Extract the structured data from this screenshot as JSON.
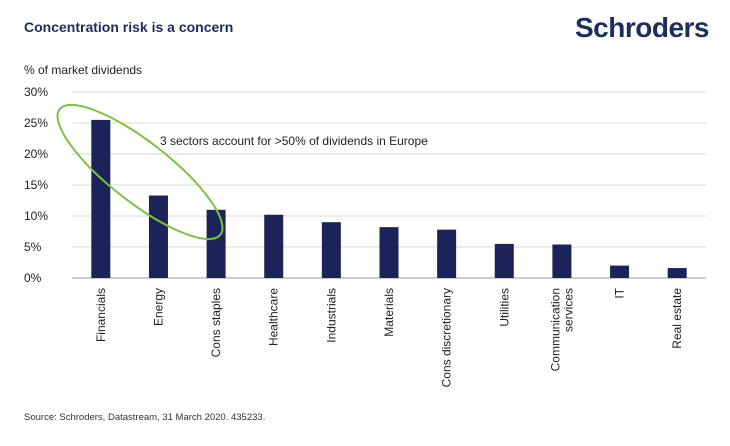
{
  "title": "Concentration risk is a concern",
  "logo_text": "Schroders",
  "source": "Source: Schroders, Datastream, 31 March 2020. 435233.",
  "colors": {
    "bar": "#1c2359",
    "title": "#1f2a5c",
    "ellipse": "#7cc242",
    "grid": "#d9d9d9"
  },
  "chart_data": {
    "type": "bar",
    "ylabel": "% of market dividends",
    "categories": [
      "Financials",
      "Energy",
      "Cons staples",
      "Healthcare",
      "Industrials",
      "Materials",
      "Cons discretionary",
      "Utilities",
      "Communication|services",
      "IT",
      "Real estate"
    ],
    "values": [
      25.5,
      13.3,
      11.0,
      10.2,
      9.0,
      8.2,
      7.8,
      5.5,
      5.4,
      2.0,
      1.6
    ],
    "ylim": [
      0,
      30
    ],
    "yticks": [
      0,
      5,
      10,
      15,
      20,
      25,
      30
    ],
    "ytick_labels": [
      "0%",
      "5%",
      "10%",
      "15%",
      "20%",
      "25%",
      "30%"
    ],
    "grid": true,
    "annotation": "3 sectors account for >50% of dividends in Europe"
  }
}
